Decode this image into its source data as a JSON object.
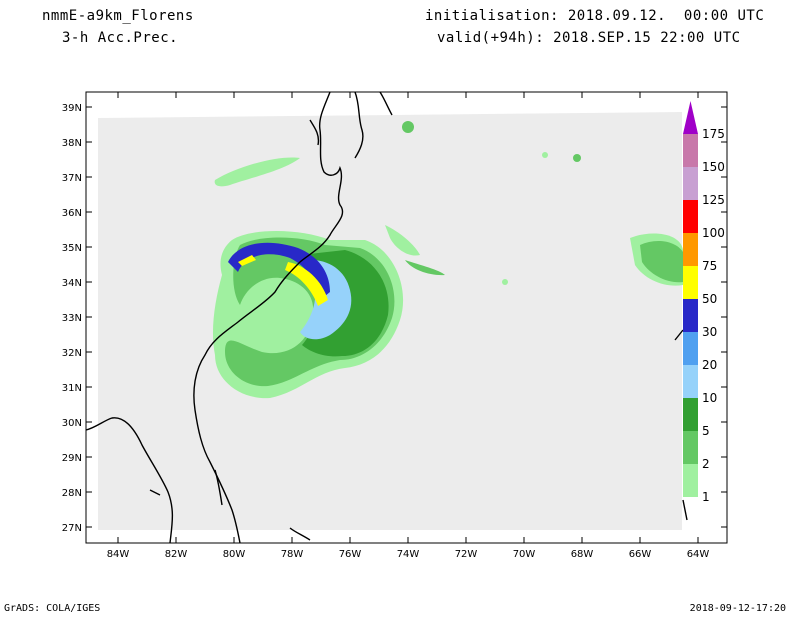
{
  "header": {
    "model": "nmmE-a9km_Florens",
    "variable": "3-h Acc.Prec.",
    "init": "initialisation: 2018.09.12.  00:00 UTC",
    "valid": "valid(+94h): 2018.SEP.15 22:00 UTC"
  },
  "footer": {
    "left": "GrADS: COLA/IGES",
    "right": "2018-09-12-17:20"
  },
  "axes": {
    "lat_labels": [
      "39N",
      "38N",
      "37N",
      "36N",
      "35N",
      "34N",
      "33N",
      "32N",
      "31N",
      "30N",
      "29N",
      "28N",
      "27N"
    ],
    "lon_labels": [
      "84W",
      "82W",
      "80W",
      "78W",
      "76W",
      "74W",
      "72W",
      "70W",
      "68W",
      "66W",
      "64W"
    ]
  },
  "colorbar": {
    "levels": [
      "1",
      "2",
      "5",
      "10",
      "20",
      "30",
      "50",
      "75",
      "100",
      "125",
      "150",
      "175"
    ],
    "colors": [
      "#a0f0a0",
      "#64c864",
      "#32a032",
      "#96d2fa",
      "#50a0f0",
      "#2828c8",
      "#ffff00",
      "#ff9900",
      "#ff0000",
      "#c8a0d2",
      "#c878aa",
      "#a000c8"
    ]
  },
  "colors": {
    "domain_bg": "#ececec",
    "coast": "#000000"
  }
}
